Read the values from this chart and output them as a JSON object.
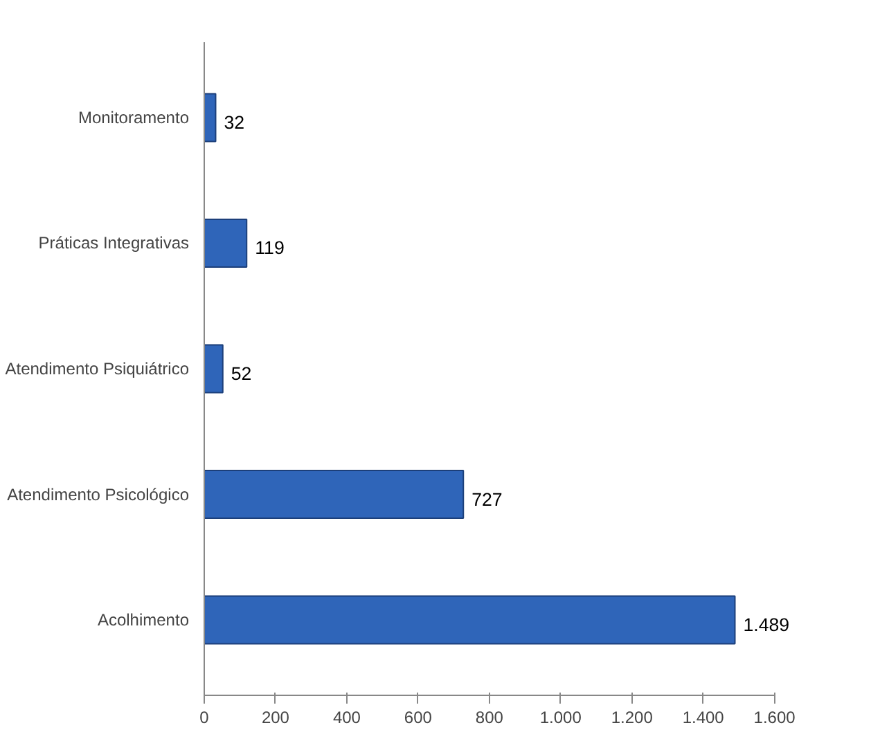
{
  "chart_data": {
    "type": "bar",
    "orientation": "horizontal",
    "categories": [
      "Monitoramento",
      "Práticas Integrativas",
      "Atendimento Psiquiátrico",
      "Atendimento Psicológico",
      "Acolhimento"
    ],
    "values": [
      32,
      119,
      52,
      727,
      1489
    ],
    "value_labels": [
      "32",
      "119",
      "52",
      "727",
      "1.489"
    ],
    "color": "#2f65b9",
    "xlim": [
      0,
      1600
    ],
    "xticks": [
      0,
      200,
      400,
      600,
      800,
      {
        "value": 1000,
        "label": "1.000"
      },
      {
        "value": 1200,
        "label": "1.200"
      },
      {
        "value": 1400,
        "label": "1.400"
      },
      {
        "value": 1600,
        "label": "1.600"
      }
    ],
    "grid": false
  }
}
